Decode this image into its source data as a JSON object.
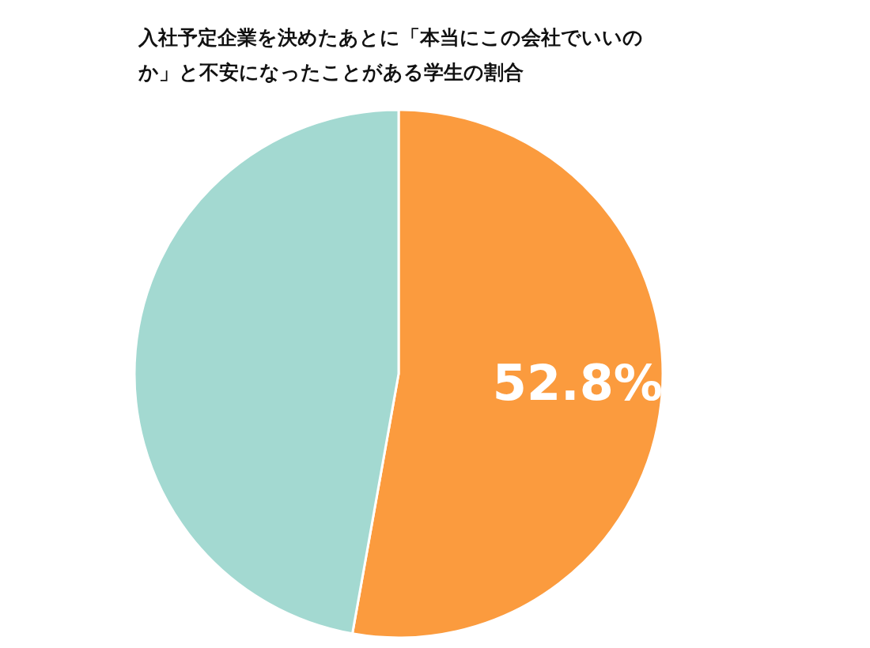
{
  "chart_data": {
    "type": "pie",
    "title": "入社予定企業を決めたあとに「本当にこの会社でいいのか」と不安になったことがある学生の割合",
    "categories": [
      null,
      null
    ],
    "values": [
      52.8,
      47.2
    ],
    "colors": [
      "#fb9b3e",
      "#a3d9d1"
    ],
    "value_labels": [
      "52.8%",
      null
    ]
  }
}
